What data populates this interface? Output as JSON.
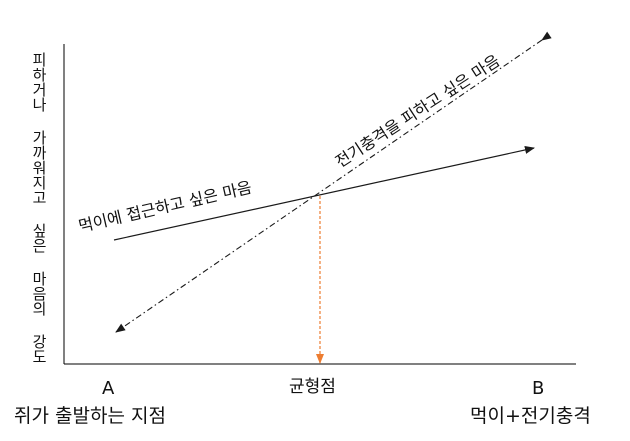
{
  "y_axis_label": "피하거나 가까워지고 싶은 마음의 강도",
  "approach_line_label": "먹이에 접근하고 싶은 마음",
  "avoid_line_label": "전기충격을 피하고 싶은 마음",
  "equilibrium_label": "균형점",
  "point_a": {
    "letter": "A",
    "caption": "쥐가 출발하는 지점"
  },
  "point_b": {
    "letter": "B",
    "caption": "먹이+전기충격"
  },
  "colors": {
    "axis": "#000000",
    "lines": "#1a1a1a",
    "equilibrium_marker": "#ed7d31"
  }
}
